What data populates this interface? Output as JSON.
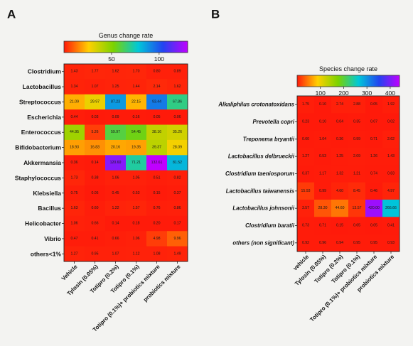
{
  "chart_data": [
    {
      "type": "heatmap",
      "panel_label": "A",
      "colorbar_title": "Genus change rate",
      "colorbar_ticks": [
        50,
        100
      ],
      "colorbar_range": [
        0,
        130
      ],
      "rows": [
        "Clostridium",
        "Lactobacillus",
        "Streptococcus",
        "Escherichia",
        "Enterococcus",
        "Bifidobacterium",
        "Akkermansia",
        "Staphylococcus",
        "Klebsiella",
        "Bacillus",
        "Helicobacter",
        "Vibrio",
        "others<1%"
      ],
      "columns": [
        "Vehicle",
        "Tylosin (0.05%)",
        "Totipro (0.2%)",
        "Totipro (0.1%)",
        "Totipro (0.1%)+ probiotics mixture",
        "probiotics mixture"
      ],
      "values": [
        [
          "1.43",
          "1.77",
          "1.62",
          "1.70",
          "0.80",
          "0.89"
        ],
        [
          "1.34",
          "1.07",
          "1.25",
          "1.44",
          "2.14",
          "1.62"
        ],
        [
          "21.09",
          "29.97",
          "87.23",
          "22.15",
          "93.44",
          "67.86"
        ],
        [
          "0.44",
          "0.03",
          "0.09",
          "0.16",
          "0.05",
          "0.06"
        ],
        [
          "44.95",
          "5.26",
          "59.97",
          "54.45",
          "38.16",
          "35.26"
        ],
        [
          "18.93",
          "16.83",
          "20.16",
          "19.35",
          "39.37",
          "28.09"
        ],
        [
          "0.36",
          "0.14",
          "120.60",
          "71.21",
          "132.61",
          "81.52"
        ],
        [
          "1.73",
          "0.38",
          "1.06",
          "1.05",
          "0.51",
          "0.82"
        ],
        [
          "0.75",
          "0.05",
          "0.45",
          "0.53",
          "0.15",
          "0.37"
        ],
        [
          "1.63",
          "0.60",
          "1.22",
          "1.57",
          "0.76",
          "0.86"
        ],
        [
          "1.06",
          "0.66",
          "0.14",
          "0.18",
          "0.20",
          "0.17"
        ],
        [
          "0.47",
          "0.41",
          "0.66",
          "1.06",
          "4.98",
          "9.96"
        ],
        [
          "1.27",
          "0.95",
          "1.07",
          "1.12",
          "1.08",
          "1.49"
        ]
      ]
    },
    {
      "type": "heatmap",
      "panel_label": "B",
      "colorbar_title": "Species change rate",
      "colorbar_ticks": [
        100,
        200,
        300,
        400
      ],
      "colorbar_range": [
        0,
        440
      ],
      "rows": [
        "Alkaliphilus crotonatoxidans",
        "Prevotella copri",
        "Treponema bryantii",
        "Lactobacillus delbrueckii",
        "Clostridium taeniosporum",
        "Lactobacillus taiwanensis",
        "Lactobacillus johnsonii",
        "Clostridium baratii",
        "others (non significant)"
      ],
      "columns": [
        "vehicle",
        "Tylosin (0.05%)",
        "Totipro (0.2%)",
        "Totipro (0.1%)",
        "Totipro (0.1%)+ probiotics mixture",
        "probiotics mixture"
      ],
      "values": [
        [
          "1.75",
          "0.10",
          "2.74",
          "2.88",
          "0.05",
          "1.92"
        ],
        [
          "0.23",
          "0.10",
          "0.04",
          "0.35",
          "0.07",
          "0.02"
        ],
        [
          "0.60",
          "1.04",
          "0.36",
          "0.99",
          "0.71",
          "2.62"
        ],
        [
          "1.27",
          "0.53",
          "1.25",
          "2.09",
          "1.26",
          "1.43"
        ],
        [
          "0.37",
          "1.17",
          "1.32",
          "1.21",
          "0.74",
          "0.83"
        ],
        [
          "15.93",
          "0.99",
          "4.60",
          "8.45",
          "0.46",
          "4.97"
        ],
        [
          "3.57",
          "28.30",
          "44.60",
          "13.57",
          "420.00",
          "266.66"
        ],
        [
          "0.73",
          "0.71",
          "0.15",
          "0.65",
          "0.05",
          "0.41"
        ],
        [
          "0.92",
          "0.96",
          "0.94",
          "0.95",
          "0.95",
          "0.93"
        ]
      ]
    }
  ]
}
